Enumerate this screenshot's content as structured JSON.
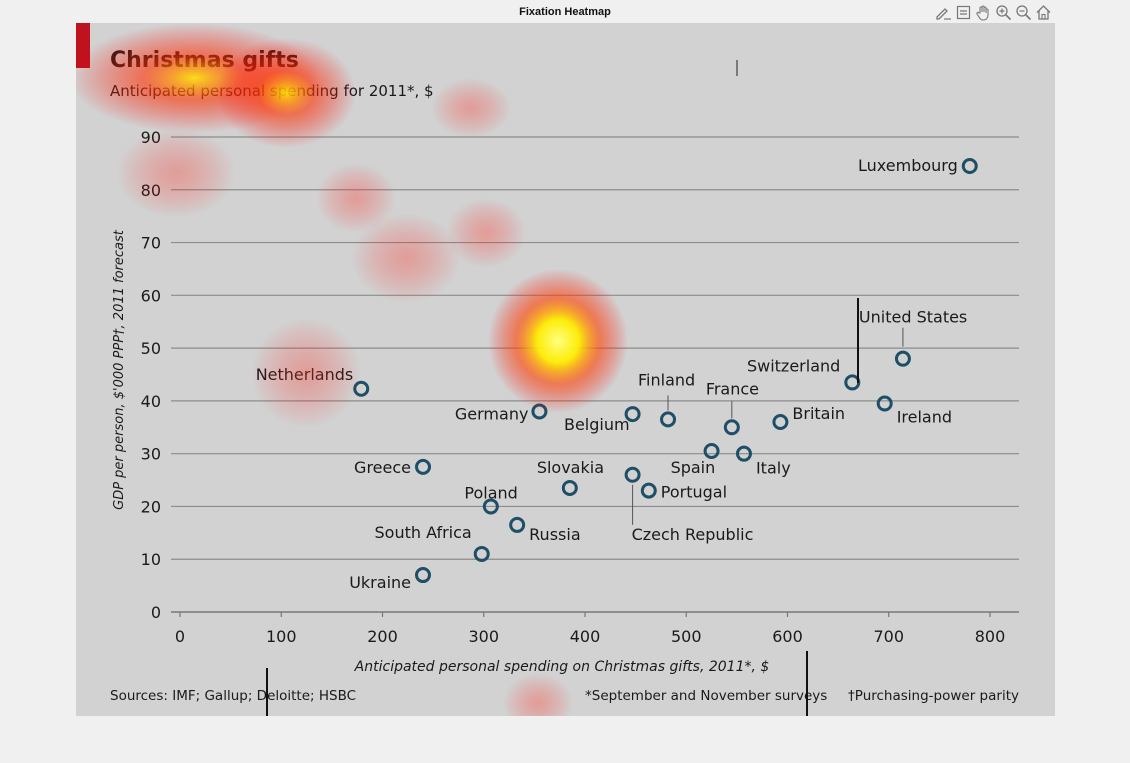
{
  "window": {
    "title": "Fixation Heatmap",
    "toolbar": [
      {
        "name": "edit-icon"
      },
      {
        "name": "data-cursor-icon"
      },
      {
        "name": "pan-hand-icon"
      },
      {
        "name": "zoom-in-icon"
      },
      {
        "name": "zoom-out-icon"
      },
      {
        "name": "home-icon"
      }
    ]
  },
  "chart_data": {
    "type": "scatter",
    "title": "Christmas gifts",
    "subtitle": "Anticipated personal spending for 2011*, $",
    "xlabel": "Anticipated personal spending on Christmas gifts, 2011*, $",
    "ylabel": "GDP per person, $'000 PPP†, 2011 forecast",
    "xlim": [
      0,
      800
    ],
    "ylim": [
      0,
      90
    ],
    "xticks": [
      0,
      100,
      200,
      300,
      400,
      500,
      600,
      700,
      800
    ],
    "yticks": [
      0,
      10,
      20,
      30,
      40,
      50,
      60,
      70,
      80,
      90
    ],
    "grid": true,
    "accent_color": "#c0111f",
    "marker_color": "#1e4f66",
    "points": [
      {
        "label": "Luxembourg",
        "x": 780,
        "y": 84.5
      },
      {
        "label": "United States",
        "x": 714,
        "y": 48
      },
      {
        "label": "Switzerland",
        "x": 664,
        "y": 43.5
      },
      {
        "label": "Ireland",
        "x": 696,
        "y": 39.5
      },
      {
        "label": "Britain",
        "x": 593,
        "y": 36
      },
      {
        "label": "France",
        "x": 545,
        "y": 35
      },
      {
        "label": "Finland",
        "x": 482,
        "y": 36.5
      },
      {
        "label": "Belgium",
        "x": 447,
        "y": 37.5
      },
      {
        "label": "Germany",
        "x": 355,
        "y": 38
      },
      {
        "label": "Netherlands",
        "x": 179,
        "y": 42.3
      },
      {
        "label": "Spain",
        "x": 525,
        "y": 30.5
      },
      {
        "label": "Italy",
        "x": 557,
        "y": 30
      },
      {
        "label": "Greece",
        "x": 240,
        "y": 27.5
      },
      {
        "label": "Slovakia",
        "x": 385,
        "y": 23.5
      },
      {
        "label": "Czech Republic",
        "x": 447,
        "y": 26
      },
      {
        "label": "Portugal",
        "x": 463,
        "y": 23
      },
      {
        "label": "Poland",
        "x": 307,
        "y": 20
      },
      {
        "label": "Russia",
        "x": 333,
        "y": 16.5
      },
      {
        "label": "South Africa",
        "x": 298,
        "y": 11
      },
      {
        "label": "Ukraine",
        "x": 240,
        "y": 7
      }
    ],
    "sources": "Sources: IMF; Gallup; Deloitte; HSBC",
    "footnote1": "*September and November surveys",
    "footnote2": "†Purchasing-power parity"
  }
}
